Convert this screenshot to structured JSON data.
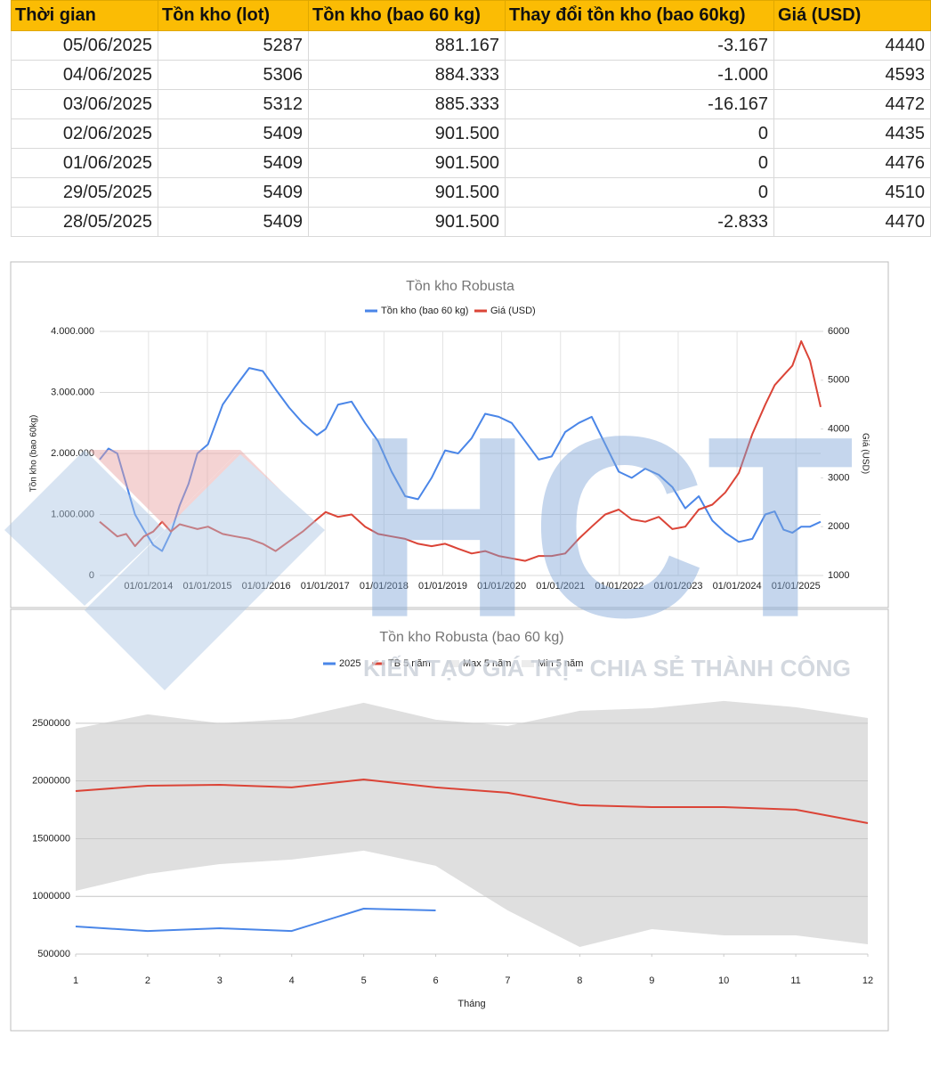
{
  "table": {
    "header": [
      "Thời gian",
      "Tồn kho (lot)",
      "Tồn kho (bao 60 kg)",
      "Thay đổi tồn kho (bao 60kg)",
      "Giá (USD)"
    ],
    "rows": [
      [
        "05/06/2025",
        "5287",
        "881.167",
        "-3.167",
        "4440"
      ],
      [
        "04/06/2025",
        "5306",
        "884.333",
        "-1.000",
        "4593"
      ],
      [
        "03/06/2025",
        "5312",
        "885.333",
        "-16.167",
        "4472"
      ],
      [
        "02/06/2025",
        "5409",
        "901.500",
        "0",
        "4435"
      ],
      [
        "01/06/2025",
        "5409",
        "901.500",
        "0",
        "4476"
      ],
      [
        "29/05/2025",
        "5409",
        "901.500",
        "0",
        "4510"
      ],
      [
        "28/05/2025",
        "5409",
        "901.500",
        "-2.833",
        "4470"
      ]
    ]
  },
  "chart_data": [
    {
      "type": "line",
      "title": "Tồn kho Robusta",
      "y_label": "Tồn kho (bao 60kg)",
      "y2_label": "Giá (USD)",
      "grid": true,
      "xgrid": true,
      "legend": "top",
      "xlim": [
        2013.17,
        2025.42
      ],
      "xticks": [
        {
          "value": 2014,
          "label": "01/01/2014"
        },
        {
          "value": 2015,
          "label": "01/01/2015"
        },
        {
          "value": 2016,
          "label": "01/01/2016"
        },
        {
          "value": 2017,
          "label": "01/01/2017"
        },
        {
          "value": 2018,
          "label": "01/01/2018"
        },
        {
          "value": 2019,
          "label": "01/01/2019"
        },
        {
          "value": 2020,
          "label": "01/01/2020"
        },
        {
          "value": 2021,
          "label": "01/01/2021"
        },
        {
          "value": 2022,
          "label": "01/01/2022"
        },
        {
          "value": 2023,
          "label": "01/01/2023"
        },
        {
          "value": 2024,
          "label": "01/01/2024"
        },
        {
          "value": 2025,
          "label": "01/01/2025"
        }
      ],
      "ylim": [
        0,
        4000000
      ],
      "yticks": [
        0,
        {
          "value": 1000000,
          "label": "1.000.000"
        },
        {
          "value": 2000000,
          "label": "2.000.000"
        },
        {
          "value": 3000000,
          "label": "3.000.000"
        },
        {
          "value": 4000000,
          "label": "4.000.000"
        }
      ],
      "y2lim": [
        1000,
        6000
      ],
      "y2ticks": [
        1000,
        2000,
        3000,
        4000,
        5000,
        6000
      ],
      "x": [
        2013.17,
        2013.32,
        2013.47,
        2013.62,
        2013.77,
        2013.92,
        2014.08,
        2014.23,
        2014.38,
        2014.53,
        2014.68,
        2014.83,
        2015.01,
        2015.26,
        2015.48,
        2015.71,
        2015.94,
        2016.16,
        2016.39,
        2016.62,
        2016.86,
        2017.01,
        2017.22,
        2017.45,
        2017.68,
        2017.9,
        2018.13,
        2018.36,
        2018.58,
        2018.81,
        2019.04,
        2019.26,
        2019.49,
        2019.72,
        2019.95,
        2020.17,
        2020.4,
        2020.63,
        2020.85,
        2021.08,
        2021.31,
        2021.53,
        2021.76,
        2021.99,
        2022.21,
        2022.44,
        2022.67,
        2022.9,
        2023.12,
        2023.35,
        2023.58,
        2023.8,
        2024.03,
        2024.26,
        2024.48,
        2024.64,
        2024.79,
        2024.94,
        2025.09,
        2025.24,
        2025.42
      ],
      "series": [
        {
          "name": "Tồn kho (bao 60 kg)",
          "color": "#4a86e8",
          "axis": "y",
          "values": [
            1900000,
            2080000,
            2000000,
            1500000,
            1000000,
            750000,
            500000,
            400000,
            700000,
            1150000,
            1500000,
            2000000,
            2150000,
            2800000,
            3100000,
            3400000,
            3350000,
            3050000,
            2750000,
            2500000,
            2300000,
            2400000,
            2800000,
            2850000,
            2500000,
            2200000,
            1700000,
            1300000,
            1250000,
            1600000,
            2050000,
            2000000,
            2250000,
            2650000,
            2600000,
            2500000,
            2200000,
            1900000,
            1950000,
            2350000,
            2500000,
            2600000,
            2150000,
            1700000,
            1600000,
            1750000,
            1650000,
            1450000,
            1100000,
            1300000,
            900000,
            700000,
            550000,
            600000,
            1000000,
            1050000,
            750000,
            700000,
            800000,
            800000,
            880000
          ]
        },
        {
          "name": "Giá (USD)",
          "color": "#db4437",
          "axis": "y2",
          "values": [
            2100,
            1950,
            1800,
            1850,
            1600,
            1800,
            1900,
            2100,
            1900,
            2050,
            2000,
            1950,
            2000,
            1850,
            1800,
            1750,
            1650,
            1500,
            1700,
            1900,
            2150,
            2300,
            2200,
            2250,
            2000,
            1850,
            1800,
            1750,
            1650,
            1600,
            1650,
            1550,
            1450,
            1500,
            1400,
            1350,
            1300,
            1400,
            1400,
            1450,
            1750,
            2000,
            2250,
            2350,
            2150,
            2100,
            2200,
            1950,
            2000,
            2350,
            2450,
            2700,
            3100,
            3900,
            4500,
            4900,
            5100,
            5300,
            5800,
            5400,
            4450
          ]
        }
      ]
    },
    {
      "type": "line",
      "title": "Tồn kho Robusta (bao 60 kg)",
      "x_label": "Tháng",
      "grid": true,
      "xgrid": false,
      "legend": "top",
      "xlim": [
        1,
        12
      ],
      "xticks": [
        1,
        2,
        3,
        4,
        5,
        6,
        7,
        8,
        9,
        10,
        11,
        12
      ],
      "ylim": [
        500000,
        2700000
      ],
      "yticks": [
        500000,
        1000000,
        1500000,
        2000000,
        2500000
      ],
      "x": [
        1,
        2,
        3,
        4,
        5,
        6,
        7,
        8,
        9,
        10,
        11,
        12
      ],
      "series": [
        {
          "name": "2025",
          "color": "#4a86e8",
          "values": [
            739000,
            700000,
            724000,
            700000,
            894000,
            878000,
            null,
            null,
            null,
            null,
            null,
            null
          ]
        },
        {
          "name": "TB 5 năm",
          "color": "#db4437",
          "values": [
            1913000,
            1959000,
            1967000,
            1944000,
            2013000,
            1944000,
            1898000,
            1790000,
            1774000,
            1774000,
            1751000,
            1635000
          ]
        },
        {
          "name": "Max 5 năm",
          "color": "#d9d9d9",
          "style": "band",
          "values": [
            2454000,
            2577000,
            2500000,
            2539000,
            2678000,
            2531000,
            2477000,
            2608000,
            2631000,
            2693000,
            2639000,
            2546000
          ]
        },
        {
          "name": "Min 5 năm",
          "color": "#d9d9d9",
          "style": "band",
          "values": [
            1048000,
            1195000,
            1280000,
            1319000,
            1396000,
            1265000,
            878000,
            562000,
            716000,
            662000,
            662000,
            585000
          ]
        }
      ]
    }
  ],
  "watermark": {
    "logo": "HCT",
    "tagline": "KIẾN TẠO GIÁ TRỊ - CHIA SẺ THÀNH CÔNG"
  }
}
